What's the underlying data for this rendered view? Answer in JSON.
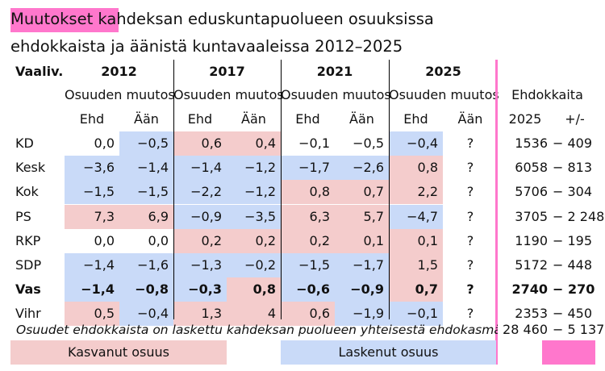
{
  "title_line1": "Muutokset kahdeksan eduskuntapuolueen osuuksissa",
  "title_line2": "ehdokkaista ja äänistä kuntavaaleissa 2012–2025",
  "header": {
    "first_col": "Vaaliv.",
    "years": [
      "2012",
      "2017",
      "2021",
      "2025"
    ],
    "group_label": "Osuuden muutos",
    "sub_ehd": "Ehd",
    "sub_aan": "Ään",
    "ehdokkaita": "Ehdokkaita",
    "year_col": "2025",
    "change_col": "+/-"
  },
  "rows": [
    {
      "party": "KD",
      "bold": false,
      "cells": [
        {
          "v": "0,0",
          "c": "none"
        },
        {
          "v": "−0,5",
          "c": "blue"
        },
        {
          "v": "0,6",
          "c": "pink"
        },
        {
          "v": "0,4",
          "c": "pink"
        },
        {
          "v": "−0,1",
          "c": "none"
        },
        {
          "v": "−0,5",
          "c": "none"
        },
        {
          "v": "−0,4",
          "c": "blue"
        },
        {
          "v": "?",
          "c": "none"
        }
      ],
      "ehdokkaita": "1536",
      "change": "−  409"
    },
    {
      "party": "Kesk",
      "bold": false,
      "cells": [
        {
          "v": "−3,6",
          "c": "blue"
        },
        {
          "v": "−1,4",
          "c": "blue"
        },
        {
          "v": "−1,4",
          "c": "blue"
        },
        {
          "v": "−1,2",
          "c": "blue"
        },
        {
          "v": "−1,7",
          "c": "blue"
        },
        {
          "v": "−2,6",
          "c": "blue"
        },
        {
          "v": "0,8",
          "c": "pink"
        },
        {
          "v": "?",
          "c": "none"
        }
      ],
      "ehdokkaita": "6058",
      "change": "−  813"
    },
    {
      "party": "Kok",
      "bold": false,
      "cells": [
        {
          "v": "−1,5",
          "c": "blue"
        },
        {
          "v": "−1,5",
          "c": "blue"
        },
        {
          "v": "−2,2",
          "c": "blue"
        },
        {
          "v": "−1,2",
          "c": "blue"
        },
        {
          "v": "0,8",
          "c": "pink"
        },
        {
          "v": "0,7",
          "c": "pink"
        },
        {
          "v": "2,2",
          "c": "pink"
        },
        {
          "v": "?",
          "c": "none"
        }
      ],
      "ehdokkaita": "5706",
      "change": "−  304"
    },
    {
      "party": "PS",
      "bold": false,
      "cells": [
        {
          "v": "7,3",
          "c": "pink"
        },
        {
          "v": "6,9",
          "c": "pink"
        },
        {
          "v": "−0,9",
          "c": "blue"
        },
        {
          "v": "−3,5",
          "c": "blue"
        },
        {
          "v": "6,3",
          "c": "pink"
        },
        {
          "v": "5,7",
          "c": "pink"
        },
        {
          "v": "−4,7",
          "c": "blue"
        },
        {
          "v": "?",
          "c": "none"
        }
      ],
      "ehdokkaita": "3705",
      "change": "− 2 248"
    },
    {
      "party": "RKP",
      "bold": false,
      "cells": [
        {
          "v": "0,0",
          "c": "none"
        },
        {
          "v": "0,0",
          "c": "none"
        },
        {
          "v": "0,2",
          "c": "pink"
        },
        {
          "v": "0,2",
          "c": "pink"
        },
        {
          "v": "0,2",
          "c": "pink"
        },
        {
          "v": "0,1",
          "c": "pink"
        },
        {
          "v": "0,1",
          "c": "pink"
        },
        {
          "v": "?",
          "c": "none"
        }
      ],
      "ehdokkaita": "1190",
      "change": "−  195"
    },
    {
      "party": "SDP",
      "bold": false,
      "cells": [
        {
          "v": "−1,4",
          "c": "blue"
        },
        {
          "v": "−1,6",
          "c": "blue"
        },
        {
          "v": "−1,3",
          "c": "blue"
        },
        {
          "v": "−0,2",
          "c": "blue"
        },
        {
          "v": "−1,5",
          "c": "blue"
        },
        {
          "v": "−1,7",
          "c": "blue"
        },
        {
          "v": "1,5",
          "c": "pink"
        },
        {
          "v": "?",
          "c": "none"
        }
      ],
      "ehdokkaita": "5172",
      "change": "−  448"
    },
    {
      "party": "Vas",
      "bold": true,
      "cells": [
        {
          "v": "−1,4",
          "c": "blue"
        },
        {
          "v": "−0,8",
          "c": "blue"
        },
        {
          "v": "−0,3",
          "c": "blue"
        },
        {
          "v": "0,8",
          "c": "pink"
        },
        {
          "v": "−0,6",
          "c": "blue"
        },
        {
          "v": "−0,9",
          "c": "blue"
        },
        {
          "v": "0,7",
          "c": "pink"
        },
        {
          "v": "?",
          "c": "none"
        }
      ],
      "ehdokkaita": "2740",
      "change": "−  270"
    },
    {
      "party": "Vihr",
      "bold": false,
      "cells": [
        {
          "v": "0,5",
          "c": "pink"
        },
        {
          "v": "−0,4",
          "c": "blue"
        },
        {
          "v": "1,3",
          "c": "pink"
        },
        {
          "v": "4",
          "c": "pink"
        },
        {
          "v": "0,6",
          "c": "pink"
        },
        {
          "v": "−1,9",
          "c": "blue"
        },
        {
          "v": "−0,1",
          "c": "blue"
        },
        {
          "v": "?",
          "c": "none"
        }
      ],
      "ehdokkaita": "2353",
      "change": "−  450"
    }
  ],
  "footnote": "Osuudet ehdokkaista on laskettu kahdeksan puolueen yhteisestä ehdokasmäärästä",
  "total": {
    "ehdokkaita": "28 460",
    "change": "− 5 137"
  },
  "legend": {
    "increase": "Kasvanut osuus",
    "decrease": "Laskenut osuus"
  },
  "colors": {
    "increase": "#f4cccc",
    "decrease": "#c9daf8",
    "highlight": "#ff77cc"
  }
}
